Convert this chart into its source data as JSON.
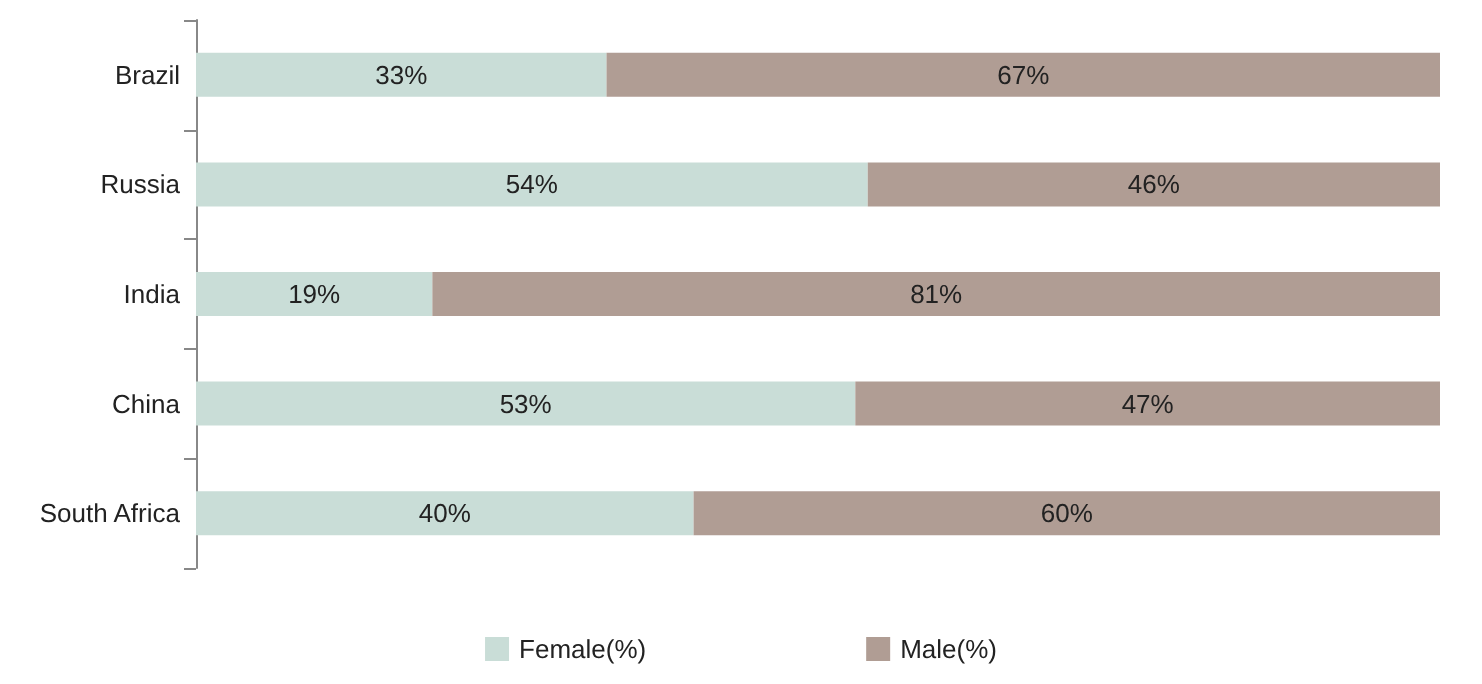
{
  "chart_data": {
    "type": "bar",
    "orientation": "horizontal",
    "stacked": true,
    "categories": [
      "Brazil",
      "Russia",
      "India",
      "China",
      "South Africa"
    ],
    "series": [
      {
        "name": "Female(%)",
        "color": "#c9ddd7",
        "values": [
          33,
          54,
          19,
          53,
          40
        ],
        "value_labels": [
          "33%",
          "54%",
          "19%",
          "53%",
          "40%"
        ]
      },
      {
        "name": "Male(%)",
        "color": "#b09d94",
        "values": [
          67,
          46,
          81,
          47,
          60
        ],
        "value_labels": [
          "67%",
          "46%",
          "81%",
          "47%",
          "60%"
        ]
      }
    ],
    "legend": "bottom",
    "grid": false
  }
}
